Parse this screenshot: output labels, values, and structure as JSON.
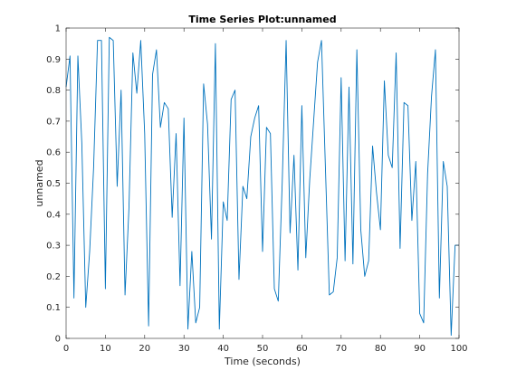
{
  "chart_data": {
    "type": "line",
    "title": "Time Series Plot:unnamed",
    "xlabel": "Time (seconds)",
    "ylabel": "unnamed",
    "xlim": [
      0,
      100
    ],
    "ylim": [
      0,
      1
    ],
    "xticks": [
      0,
      10,
      20,
      30,
      40,
      50,
      60,
      70,
      80,
      90,
      100
    ],
    "yticks": [
      0,
      0.1,
      0.2,
      0.3,
      0.4,
      0.5,
      0.6,
      0.7,
      0.8,
      0.9,
      1
    ],
    "grid": false,
    "line_color": "#0072BD",
    "series": [
      {
        "x": [
          0,
          1,
          2,
          3,
          4,
          5,
          6,
          7,
          8,
          9,
          10,
          11,
          12,
          13,
          14,
          15,
          16,
          17,
          18,
          19,
          20,
          21,
          22,
          23,
          24,
          25,
          26,
          27,
          28,
          29,
          30,
          31,
          32,
          33,
          34,
          35,
          36,
          37,
          38,
          39,
          40,
          41,
          42,
          43,
          44,
          45,
          46,
          47,
          48,
          49,
          50,
          51,
          52,
          53,
          54,
          55,
          56,
          57,
          58,
          59,
          60,
          61,
          62,
          63,
          64,
          65,
          66,
          67,
          68,
          69,
          70,
          71,
          72,
          73,
          74,
          75,
          76,
          77,
          78,
          79,
          80,
          81,
          82,
          83,
          84,
          85,
          86,
          87,
          88,
          89,
          90,
          91,
          92,
          93,
          94,
          95,
          96,
          97,
          98,
          99,
          100
        ],
        "values": [
          0.81,
          0.91,
          0.13,
          0.91,
          0.63,
          0.1,
          0.28,
          0.55,
          0.96,
          0.96,
          0.16,
          0.97,
          0.96,
          0.49,
          0.8,
          0.14,
          0.42,
          0.92,
          0.79,
          0.96,
          0.66,
          0.04,
          0.85,
          0.93,
          0.68,
          0.76,
          0.74,
          0.39,
          0.66,
          0.17,
          0.71,
          0.03,
          0.28,
          0.05,
          0.1,
          0.82,
          0.69,
          0.32,
          0.95,
          0.03,
          0.44,
          0.38,
          0.77,
          0.8,
          0.19,
          0.49,
          0.45,
          0.65,
          0.71,
          0.75,
          0.28,
          0.68,
          0.66,
          0.16,
          0.12,
          0.5,
          0.96,
          0.34,
          0.59,
          0.22,
          0.75,
          0.26,
          0.51,
          0.7,
          0.89,
          0.96,
          0.55,
          0.14,
          0.15,
          0.26,
          0.84,
          0.25,
          0.81,
          0.24,
          0.93,
          0.35,
          0.2,
          0.25,
          0.62,
          0.47,
          0.35,
          0.83,
          0.59,
          0.55,
          0.92,
          0.29,
          0.76,
          0.75,
          0.38,
          0.57,
          0.08,
          0.05,
          0.53,
          0.78,
          0.93,
          0.13,
          0.57,
          0.49,
          0.01,
          0.3,
          0.3
        ]
      }
    ]
  }
}
